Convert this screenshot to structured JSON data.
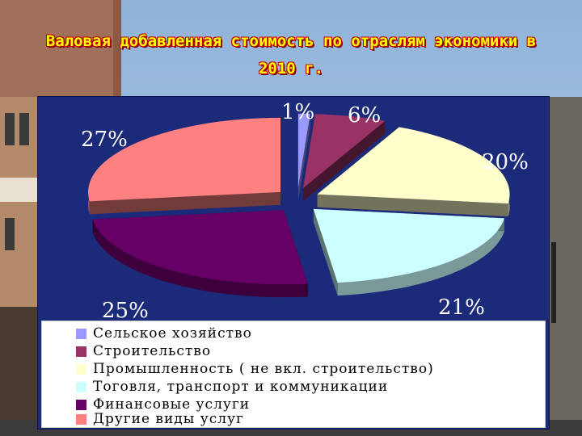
{
  "page": {
    "title_line1": "Валовая добавленная стоимость по отраслям экономики в",
    "title_line2": "2010 г."
  },
  "chart_data": {
    "type": "pie",
    "title": "Валовая добавленная стоимость по отраслям экономики в 2010 г.",
    "labels": [
      "Сельское хозяйство",
      "Строительство",
      "Промышленность ( не вкл. строительство)",
      "Тоговля, транспорт и коммуникации",
      "Финансовые услуги",
      "Другие виды услуг"
    ],
    "values": [
      1,
      6,
      20,
      21,
      25,
      27
    ],
    "value_labels": [
      "1%",
      "6%",
      "20%",
      "21%",
      "25%",
      "27%"
    ],
    "colors": [
      "#9999ff",
      "#993366",
      "#ffffcc",
      "#ccffff",
      "#660066",
      "#ff8080"
    ],
    "legend_position": "bottom",
    "exploded": true,
    "three_d": true
  }
}
